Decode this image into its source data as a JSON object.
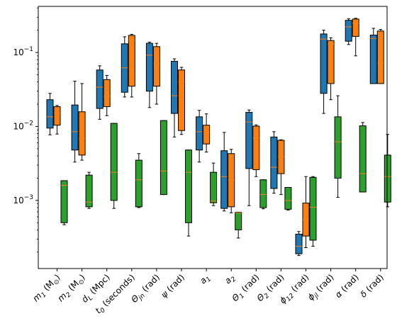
{
  "chart_data": {
    "type": "box",
    "y_scale": "log",
    "ylim": [
      0.00012,
      0.42
    ],
    "y_ticks": [
      0.001,
      0.01,
      0.1
    ],
    "y_tick_labels": [
      {
        "base": "10",
        "exp": "−3"
      },
      {
        "base": "10",
        "exp": "−2"
      },
      {
        "base": "10",
        "exp": "−1"
      }
    ],
    "grid": false,
    "legend": "none",
    "categories": [
      {
        "main": "m",
        "sub": "1",
        "suffix": " (M",
        "sub2": "⊙",
        "end": ")"
      },
      {
        "main": "m",
        "sub": "2",
        "suffix": " (M",
        "sub2": "⊙",
        "end": ")"
      },
      {
        "main": "d",
        "sub": "L",
        "suffix": " (Mpc)"
      },
      {
        "main": "t",
        "sub": "0",
        "suffix": " (seconds)"
      },
      {
        "main": "Θ",
        "sub": "jn",
        "suffix": " (rad)"
      },
      {
        "main": "ψ",
        "suffix": " (rad)"
      },
      {
        "main": "a",
        "sub": "1"
      },
      {
        "main": "a",
        "sub": "2"
      },
      {
        "main": "Θ",
        "sub": "1",
        "suffix": " (rad)"
      },
      {
        "main": "Θ",
        "sub": "2",
        "suffix": " (rad)"
      },
      {
        "main": "ϕ",
        "sub": "12",
        "suffix": " (rad)"
      },
      {
        "main": "ϕ",
        "sub": "jl",
        "suffix": " (rad)"
      },
      {
        "main": "α",
        "suffix": " (rad)"
      },
      {
        "main": "δ",
        "suffix": " (rad)"
      }
    ],
    "series_colors": [
      "#1f77b4",
      "#ff7f0e",
      "#2ca02c"
    ],
    "median_color": "#ff7f0e",
    "series": [
      {
        "color": "#1f77b4",
        "boxes": [
          {
            "whislo": 0.0077,
            "q1": 0.0095,
            "med": 0.0135,
            "q3": 0.023,
            "whishi": 0.028
          },
          {
            "whislo": 0.0033,
            "q1": 0.0048,
            "med": 0.0085,
            "q3": 0.0195,
            "whishi": 0.041
          },
          {
            "whislo": 0.0125,
            "q1": 0.0175,
            "med": 0.034,
            "q3": 0.058,
            "whishi": 0.066
          },
          {
            "whislo": 0.025,
            "q1": 0.029,
            "med": 0.062,
            "q3": 0.131,
            "whishi": 0.163
          },
          {
            "whislo": 0.018,
            "q1": 0.03,
            "med": 0.092,
            "q3": 0.133,
            "whishi": 0.138
          },
          {
            "whislo": 0.0072,
            "q1": 0.015,
            "med": 0.026,
            "q3": 0.076,
            "whishi": 0.082
          },
          {
            "whislo": 0.0033,
            "q1": 0.0048,
            "med": 0.0085,
            "q3": 0.0135,
            "whishi": 0.0165
          },
          {
            "whislo": 0.00072,
            "q1": 0.00078,
            "med": 0.0021,
            "q3": 0.0047,
            "whishi": 0.0083
          },
          {
            "whislo": 0.00085,
            "q1": 0.0027,
            "med": 0.0115,
            "q3": 0.0155,
            "whishi": 0.0167
          },
          {
            "whislo": 0.00125,
            "q1": 0.00145,
            "med": 0.0028,
            "q3": 0.0072,
            "whishi": 0.0085
          },
          {
            "whislo": 0.00018,
            "q1": 0.00019,
            "med": 0.00024,
            "q3": 0.00035,
            "whishi": 0.00038
          },
          {
            "whislo": 0.015,
            "q1": 0.028,
            "med": 0.152,
            "q3": 0.178,
            "whishi": 0.2
          },
          {
            "whislo": 0.128,
            "q1": 0.142,
            "med": 0.222,
            "q3": 0.272,
            "whishi": 0.285
          },
          {
            "whislo": 0.038,
            "q1": 0.038,
            "med": 0.155,
            "q3": 0.172,
            "whishi": 0.212
          }
        ]
      },
      {
        "color": "#ff7f0e",
        "boxes": [
          {
            "whislo": 0.0079,
            "q1": 0.0104,
            "med": 0.015,
            "q3": 0.0185,
            "whishi": 0.0192
          },
          {
            "whislo": 0.0035,
            "q1": 0.0041,
            "med": 0.0069,
            "q3": 0.0158,
            "whishi": 0.038
          },
          {
            "whislo": 0.014,
            "q1": 0.0185,
            "med": 0.0255,
            "q3": 0.043,
            "whishi": 0.049
          },
          {
            "whislo": 0.025,
            "q1": 0.035,
            "med": 0.148,
            "q3": 0.17,
            "whishi": 0.176
          },
          {
            "whislo": 0.02,
            "q1": 0.035,
            "med": 0.07,
            "q3": 0.12,
            "whishi": 0.133
          },
          {
            "whislo": 0.0078,
            "q1": 0.0088,
            "med": 0.04,
            "q3": 0.058,
            "whishi": 0.063
          },
          {
            "whislo": 0.0045,
            "q1": 0.0058,
            "med": 0.0083,
            "q3": 0.0104,
            "whishi": 0.0148
          },
          {
            "whislo": 0.00068,
            "q1": 0.00082,
            "med": 0.0019,
            "q3": 0.0043,
            "whishi": 0.0049
          },
          {
            "whislo": 0.0021,
            "q1": 0.0026,
            "med": 0.007,
            "q3": 0.0101,
            "whishi": 0.0105
          },
          {
            "whislo": 0.0012,
            "q1": 0.0023,
            "med": 0.0039,
            "q3": 0.0065,
            "whishi": 0.0066
          },
          {
            "whislo": 0.00023,
            "q1": 0.00033,
            "med": 0.00055,
            "q3": 0.00092,
            "whishi": 0.0021
          },
          {
            "whislo": 0.023,
            "q1": 0.038,
            "med": 0.13,
            "q3": 0.145,
            "whishi": 0.158
          },
          {
            "whislo": 0.09,
            "q1": 0.165,
            "med": 0.25,
            "q3": 0.283,
            "whishi": 0.29
          },
          {
            "whislo": 0.038,
            "q1": 0.038,
            "med": 0.072,
            "q3": 0.195,
            "whishi": 0.205
          }
        ]
      },
      {
        "color": "#2ca02c",
        "boxes": [
          {
            "whislo": 0.00047,
            "q1": 0.0005,
            "med": 0.0016,
            "q3": 0.00185,
            "whishi": 0.00185
          },
          {
            "whislo": 0.00078,
            "q1": 0.00082,
            "med": 0.00095,
            "q3": 0.0022,
            "whishi": 0.0024
          },
          {
            "whislo": 0.00078,
            "q1": 0.001,
            "med": 0.0024,
            "q3": 0.011,
            "whishi": 0.011
          },
          {
            "whislo": 0.0008,
            "q1": 0.00082,
            "med": 0.0019,
            "q3": 0.0035,
            "whishi": 0.0043
          },
          {
            "whislo": 0.0012,
            "q1": 0.0012,
            "med": 0.0025,
            "q3": 0.012,
            "whishi": 0.012
          },
          {
            "whislo": 0.00033,
            "q1": 0.0005,
            "med": 0.0024,
            "q3": 0.0048,
            "whishi": 0.0048
          },
          {
            "whislo": 0.00085,
            "q1": 0.00093,
            "med": 0.00098,
            "q3": 0.0024,
            "whishi": 0.0032
          },
          {
            "whislo": 0.00031,
            "q1": 0.0004,
            "med": 0.00068,
            "q3": 0.00069,
            "whishi": 0.00069
          },
          {
            "whislo": 0.00077,
            "q1": 0.0008,
            "med": 0.0012,
            "q3": 0.0019,
            "whishi": 0.0019
          },
          {
            "whislo": 0.00074,
            "q1": 0.00076,
            "med": 0.001,
            "q3": 0.0015,
            "whishi": 0.0015
          },
          {
            "whislo": 0.00024,
            "q1": 0.00029,
            "med": 0.00081,
            "q3": 0.00205,
            "whishi": 0.0021
          },
          {
            "whislo": 0.0011,
            "q1": 0.002,
            "med": 0.0062,
            "q3": 0.0135,
            "whishi": 0.026
          },
          {
            "whislo": 0.0013,
            "q1": 0.0013,
            "med": 0.0023,
            "q3": 0.0102,
            "whishi": 0.0113
          },
          {
            "whislo": 0.00082,
            "q1": 0.00095,
            "med": 0.0021,
            "q3": 0.0041,
            "whishi": 0.0078
          }
        ]
      }
    ]
  }
}
